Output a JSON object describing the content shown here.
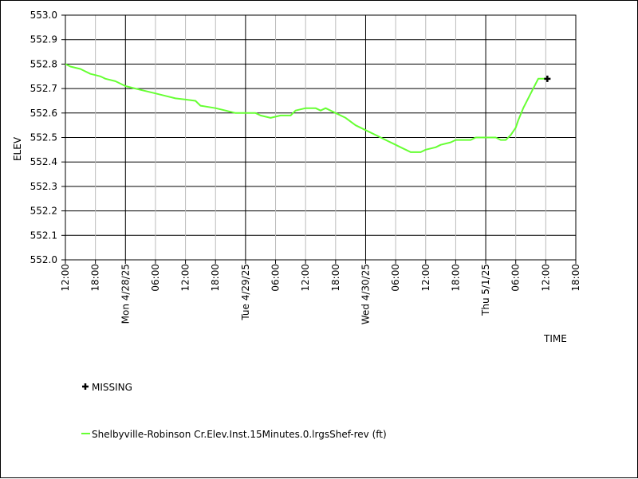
{
  "chart_data": {
    "type": "line",
    "title": "",
    "xlabel": "TIME",
    "ylabel": "ELEV",
    "ylim": [
      552.0,
      553.0
    ],
    "xlim": [
      "2025-04-27 12:00",
      "2025-05-01 18:00"
    ],
    "grid": true,
    "y_ticks": [
      "552.0",
      "552.1",
      "552.2",
      "552.3",
      "552.4",
      "552.5",
      "552.6",
      "552.7",
      "552.8",
      "552.9",
      "553.0"
    ],
    "x_ticks": [
      {
        "t": "2025-04-27 12:00",
        "label": "12:00"
      },
      {
        "t": "2025-04-27 18:00",
        "label": "18:00"
      },
      {
        "t": "2025-04-28 00:00",
        "label": "Mon 4/28/25"
      },
      {
        "t": "2025-04-28 06:00",
        "label": "06:00"
      },
      {
        "t": "2025-04-28 12:00",
        "label": "12:00"
      },
      {
        "t": "2025-04-28 18:00",
        "label": "18:00"
      },
      {
        "t": "2025-04-29 00:00",
        "label": "Tue 4/29/25"
      },
      {
        "t": "2025-04-29 06:00",
        "label": "06:00"
      },
      {
        "t": "2025-04-29 12:00",
        "label": "12:00"
      },
      {
        "t": "2025-04-29 18:00",
        "label": "18:00"
      },
      {
        "t": "2025-04-30 00:00",
        "label": "Wed 4/30/25"
      },
      {
        "t": "2025-04-30 06:00",
        "label": "06:00"
      },
      {
        "t": "2025-04-30 12:00",
        "label": "12:00"
      },
      {
        "t": "2025-04-30 18:00",
        "label": "18:00"
      },
      {
        "t": "2025-05-01 00:00",
        "label": "Thu 5/1/25"
      },
      {
        "t": "2025-05-01 06:00",
        "label": "06:00"
      },
      {
        "t": "2025-05-01 12:00",
        "label": "12:00"
      },
      {
        "t": "2025-05-01 18:00",
        "label": "18:00"
      }
    ],
    "series": [
      {
        "name": "Shelbyville-Robinson Cr.Elev.Inst.15Minutes.0.lrgsShef-rev (ft)",
        "color": "#66ff33",
        "points": [
          [
            "2025-04-27 12:00",
            552.8
          ],
          [
            "2025-04-27 13:00",
            552.79
          ],
          [
            "2025-04-27 15:00",
            552.78
          ],
          [
            "2025-04-27 16:00",
            552.77
          ],
          [
            "2025-04-27 17:00",
            552.76
          ],
          [
            "2025-04-27 18:00",
            552.755
          ],
          [
            "2025-04-27 19:00",
            552.75
          ],
          [
            "2025-04-27 20:00",
            552.74
          ],
          [
            "2025-04-27 22:00",
            552.73
          ],
          [
            "2025-04-28 00:00",
            552.71
          ],
          [
            "2025-04-28 02:00",
            552.7
          ],
          [
            "2025-04-28 04:00",
            552.69
          ],
          [
            "2025-04-28 06:00",
            552.68
          ],
          [
            "2025-04-28 08:00",
            552.67
          ],
          [
            "2025-04-28 10:00",
            552.66
          ],
          [
            "2025-04-28 12:00",
            552.655
          ],
          [
            "2025-04-28 14:00",
            552.65
          ],
          [
            "2025-04-28 15:00",
            552.63
          ],
          [
            "2025-04-28 18:00",
            552.62
          ],
          [
            "2025-04-28 20:00",
            552.61
          ],
          [
            "2025-04-28 22:00",
            552.6
          ],
          [
            "2025-04-29 02:00",
            552.6
          ],
          [
            "2025-04-29 03:00",
            552.59
          ],
          [
            "2025-04-29 05:00",
            552.58
          ],
          [
            "2025-04-29 07:00",
            552.59
          ],
          [
            "2025-04-29 09:00",
            552.59
          ],
          [
            "2025-04-29 10:00",
            552.61
          ],
          [
            "2025-04-29 12:00",
            552.62
          ],
          [
            "2025-04-29 14:00",
            552.62
          ],
          [
            "2025-04-29 15:00",
            552.61
          ],
          [
            "2025-04-29 16:00",
            552.62
          ],
          [
            "2025-04-29 18:00",
            552.6
          ],
          [
            "2025-04-29 20:00",
            552.58
          ],
          [
            "2025-04-29 22:00",
            552.55
          ],
          [
            "2025-04-30 00:00",
            552.53
          ],
          [
            "2025-04-30 02:00",
            552.51
          ],
          [
            "2025-04-30 04:00",
            552.49
          ],
          [
            "2025-04-30 06:00",
            552.47
          ],
          [
            "2025-04-30 07:00",
            552.46
          ],
          [
            "2025-04-30 08:00",
            552.45
          ],
          [
            "2025-04-30 09:00",
            552.44
          ],
          [
            "2025-04-30 11:00",
            552.44
          ],
          [
            "2025-04-30 12:00",
            552.45
          ],
          [
            "2025-04-30 14:00",
            552.46
          ],
          [
            "2025-04-30 15:00",
            552.47
          ],
          [
            "2025-04-30 17:00",
            552.48
          ],
          [
            "2025-04-30 18:00",
            552.49
          ],
          [
            "2025-04-30 21:00",
            552.49
          ],
          [
            "2025-04-30 22:00",
            552.5
          ],
          [
            "2025-05-01 02:00",
            552.5
          ],
          [
            "2025-05-01 03:00",
            552.49
          ],
          [
            "2025-05-01 04:00",
            552.49
          ],
          [
            "2025-05-01 05:00",
            552.51
          ],
          [
            "2025-05-01 06:00",
            552.54
          ],
          [
            "2025-05-01 06:30",
            552.57
          ],
          [
            "2025-05-01 07:30",
            552.62
          ],
          [
            "2025-05-01 09:00",
            552.68
          ],
          [
            "2025-05-01 10:30",
            552.74
          ],
          [
            "2025-05-01 12:00",
            552.74
          ]
        ]
      }
    ],
    "missing_points": [
      [
        "2025-05-01 12:00",
        552.74
      ]
    ],
    "legend": {
      "missing_label": "MISSING",
      "placement": "bottom-left"
    }
  }
}
